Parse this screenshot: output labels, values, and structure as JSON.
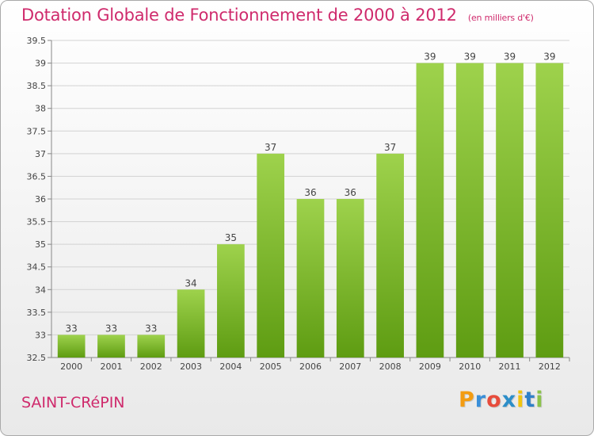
{
  "header": {
    "title": "Dotation Globale de Fonctionnement de 2000 à 2012",
    "subtitle": "(en milliers d'€)"
  },
  "footer": {
    "commune": "SAINT-CRéPIN",
    "brand": [
      "P",
      "r",
      "o",
      "x",
      "i",
      "t",
      "i"
    ],
    "brand_colors": [
      "#f39c12",
      "#3a8fd9",
      "#e74c3c",
      "#2c8ec8",
      "#f1c40f",
      "#2f80c8",
      "#8bc34a"
    ]
  },
  "chart_data": {
    "type": "bar",
    "categories": [
      "2000",
      "2001",
      "2002",
      "2003",
      "2004",
      "2005",
      "2006",
      "2007",
      "2008",
      "2009",
      "2010",
      "2011",
      "2012"
    ],
    "values": [
      33,
      33,
      33,
      34,
      35,
      37,
      36,
      36,
      37,
      39,
      39,
      39,
      39
    ],
    "ylim": [
      32.5,
      39.5
    ],
    "yticks": [
      "32.5",
      "33",
      "33.5",
      "34",
      "34.5",
      "35",
      "35.5",
      "36",
      "36.5",
      "37",
      "37.5",
      "38",
      "38.5",
      "39",
      "39.5"
    ],
    "grid": true,
    "bar_color_top": "#9ed24c",
    "bar_color_bottom": "#5e9c12"
  }
}
